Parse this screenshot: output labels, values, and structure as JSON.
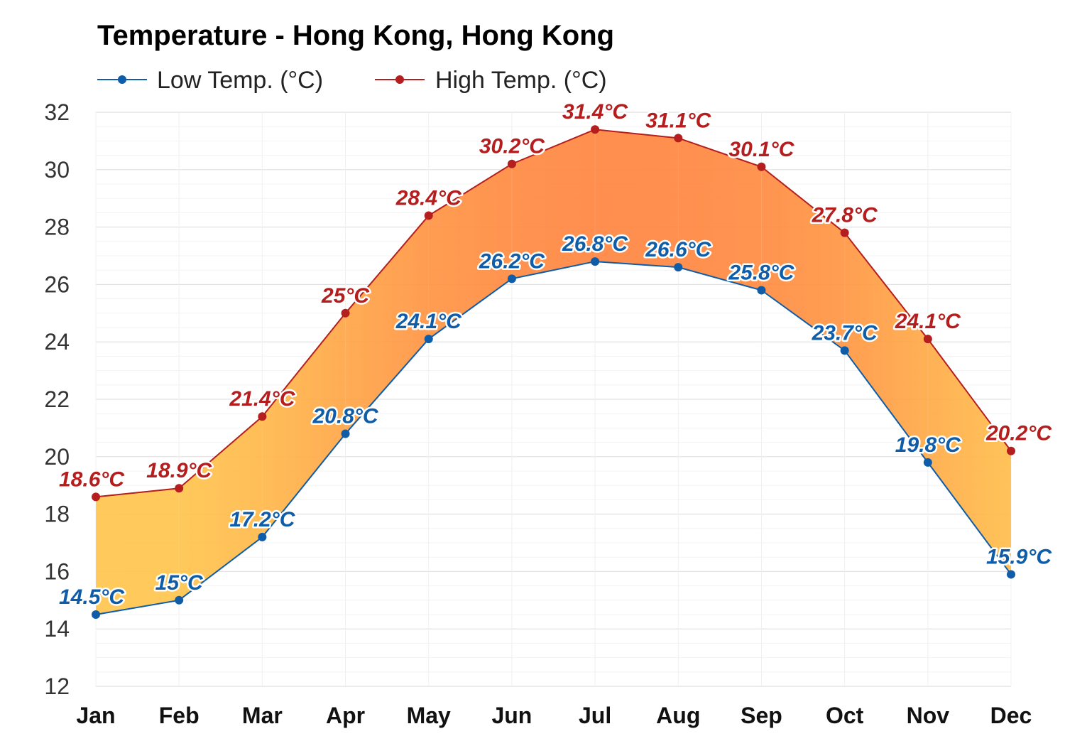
{
  "chart_data": {
    "type": "area",
    "title": "Temperature - Hong Kong, Hong Kong",
    "xlabel": "",
    "ylabel": "",
    "categories": [
      "Jan",
      "Feb",
      "Mar",
      "Apr",
      "May",
      "Jun",
      "Jul",
      "Aug",
      "Sep",
      "Oct",
      "Nov",
      "Dec"
    ],
    "ylim": [
      12,
      32
    ],
    "yticks": [
      "12",
      "14",
      "16",
      "18",
      "20",
      "22",
      "24",
      "26",
      "28",
      "30",
      "32"
    ],
    "grid": true,
    "legend_position": "top-left",
    "series": [
      {
        "name": "Low Temp. (°C)",
        "color": "#0f5ca8",
        "values": [
          14.5,
          15,
          17.2,
          20.8,
          24.1,
          26.2,
          26.8,
          26.6,
          25.8,
          23.7,
          19.8,
          15.9
        ],
        "labels": [
          "14.5°C",
          "15°C",
          "17.2°C",
          "20.8°C",
          "24.1°C",
          "26.2°C",
          "26.8°C",
          "26.6°C",
          "25.8°C",
          "23.7°C",
          "19.8°C",
          "15.9°C"
        ]
      },
      {
        "name": "High Temp. (°C)",
        "color": "#b51e1e",
        "values": [
          18.6,
          18.9,
          21.4,
          25,
          28.4,
          30.2,
          31.4,
          31.1,
          30.1,
          27.8,
          24.1,
          20.2
        ],
        "labels": [
          "18.6°C",
          "18.9°C",
          "21.4°C",
          "25°C",
          "28.4°C",
          "30.2°C",
          "31.4°C",
          "31.1°C",
          "30.1°C",
          "27.8°C",
          "24.1°C",
          "20.2°C"
        ]
      }
    ],
    "band_colors": {
      "cool": "#ffc64d",
      "warm": "#ff8540"
    }
  }
}
